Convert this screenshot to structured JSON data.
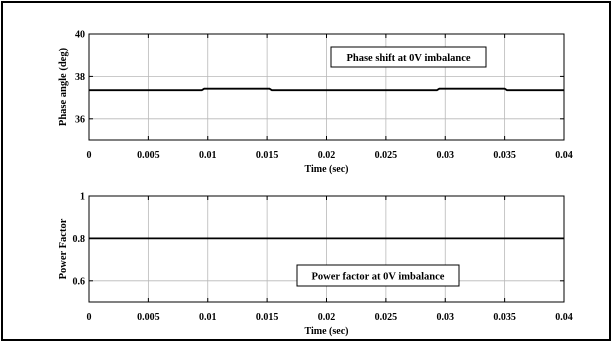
{
  "chart_data": [
    {
      "type": "line",
      "xlabel": "Time (sec)",
      "ylabel": "Phase angle (deg)",
      "xlim": [
        0,
        0.04
      ],
      "ylim": [
        35,
        40
      ],
      "x_ticks": [
        0,
        0.005,
        0.01,
        0.015,
        0.02,
        0.025,
        0.03,
        0.035,
        0.04
      ],
      "x_tick_labels": [
        "0",
        "0.005",
        "0.01",
        "0.015",
        "0.02",
        "0.025",
        "0.03",
        "0.035",
        "0.04"
      ],
      "y_ticks": [
        36,
        38,
        40
      ],
      "y_tick_labels": [
        "36",
        "38",
        "40"
      ],
      "grid": true,
      "annotation": "Phase shift at 0V imbalance",
      "series": [
        {
          "x": [
            0,
            0.0095,
            0.0097,
            0.0152,
            0.0154,
            0.0293,
            0.0295,
            0.035,
            0.0352,
            0.04
          ],
          "values": [
            37.35,
            37.35,
            37.42,
            37.42,
            37.35,
            37.35,
            37.42,
            37.42,
            37.35,
            37.35
          ]
        }
      ]
    },
    {
      "type": "line",
      "xlabel": "Time (sec)",
      "ylabel": "Power Factor",
      "xlim": [
        0,
        0.04
      ],
      "ylim": [
        0.5,
        1
      ],
      "x_ticks": [
        0,
        0.005,
        0.01,
        0.015,
        0.02,
        0.025,
        0.03,
        0.035,
        0.04
      ],
      "x_tick_labels": [
        "0",
        "0.005",
        "0.01",
        "0.015",
        "0.02",
        "0.025",
        "0.03",
        "0.035",
        "0.04"
      ],
      "y_ticks": [
        0.6,
        0.8,
        1
      ],
      "y_tick_labels": [
        "0.6",
        "0.8",
        "1"
      ],
      "grid": true,
      "annotation": "Power factor at 0V imbalance",
      "series": [
        {
          "x": [
            0,
            0.04
          ],
          "values": [
            0.8,
            0.8
          ]
        }
      ]
    }
  ]
}
